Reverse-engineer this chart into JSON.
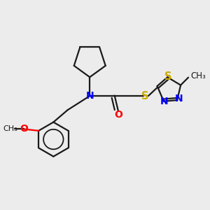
{
  "bg_color": "#ececec",
  "bond_color": "#1a1a1a",
  "N_color": "#0000ff",
  "O_color": "#ff0000",
  "S_color": "#ccaa00",
  "figsize": [
    3.0,
    3.0
  ],
  "dpi": 100,
  "lw": 1.6,
  "xlim": [
    0,
    10
  ],
  "ylim": [
    0,
    10
  ]
}
